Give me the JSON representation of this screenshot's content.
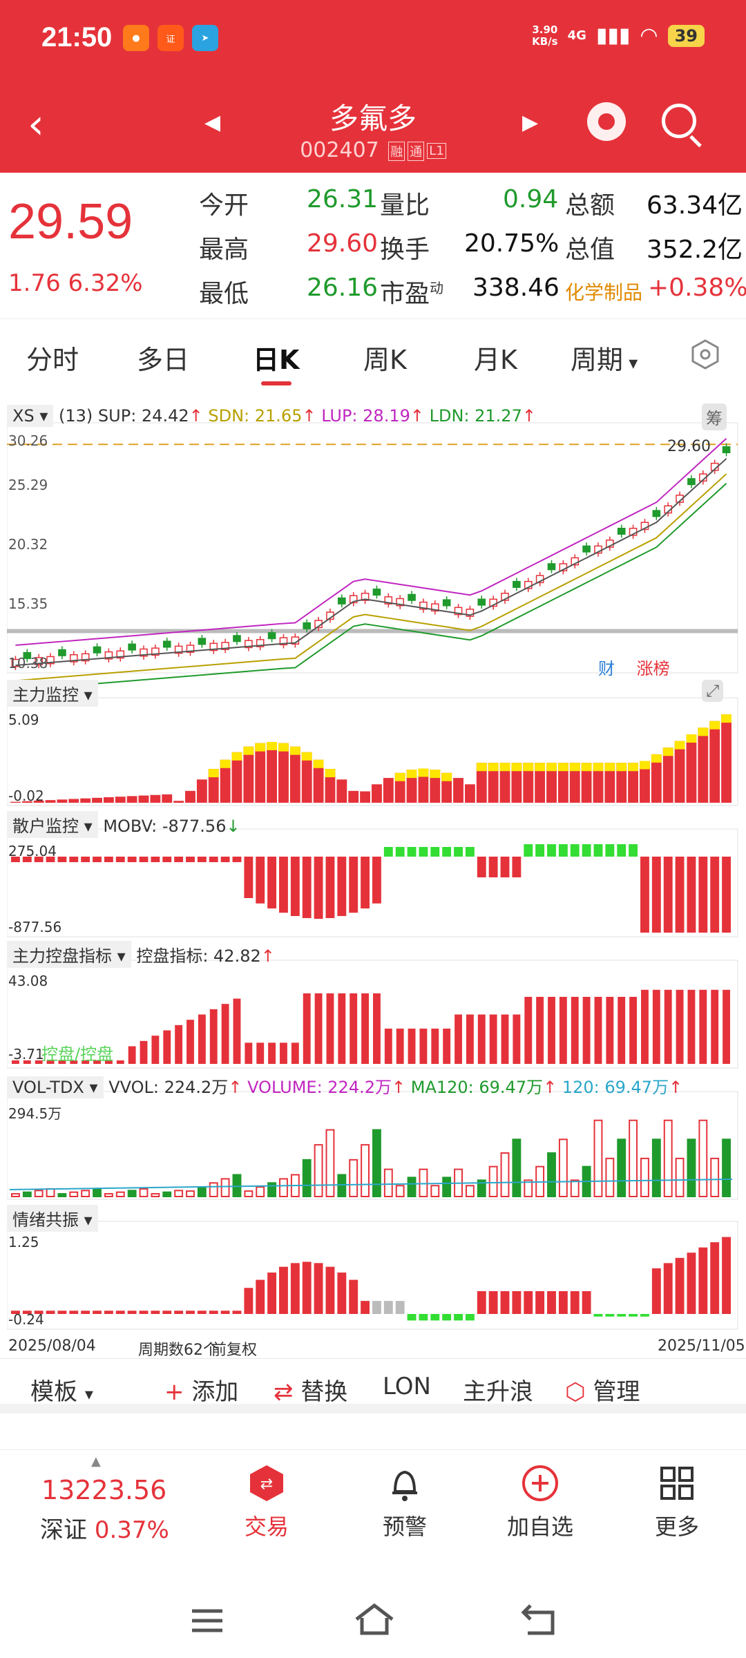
{
  "status_bar": {
    "time": "21:50",
    "net_speed_value": "3.90",
    "net_speed_unit": "KB/s",
    "signal": "4G",
    "battery": "39"
  },
  "header": {
    "stock_name": "多氟多",
    "stock_code": "002407",
    "tags": [
      "融",
      "通",
      "L1"
    ]
  },
  "quote": {
    "price": "29.59",
    "change": "1.76 6.32%",
    "fields": [
      {
        "label": "今开",
        "value": "26.31",
        "color": "green"
      },
      {
        "label": "量比",
        "value": "0.94",
        "color": "green"
      },
      {
        "label": "总额",
        "value": "63.34亿",
        "color": "dark"
      },
      {
        "label": "最高",
        "value": "29.60",
        "color": "red"
      },
      {
        "label": "换手",
        "value": "20.75%",
        "color": "dark"
      },
      {
        "label": "总值",
        "value": "352.2亿",
        "color": "dark"
      },
      {
        "label": "最低",
        "value": "26.16",
        "color": "green"
      },
      {
        "label": "市盈",
        "label_sup": "动",
        "value": "338.46",
        "color": "dark"
      },
      {
        "label": "化学制品",
        "value": "+0.38%",
        "color": "red"
      }
    ]
  },
  "tabs": [
    "分时",
    "多日",
    "日K",
    "周K",
    "月K",
    "周期"
  ],
  "active_tab": "日K",
  "main_chart": {
    "indicator_name": "XS",
    "param": "(13)",
    "sup": "SUP: 24.42",
    "sdn": "SDN: 21.65",
    "lup": "LUP: 28.19",
    "ldn": "LDN: 21.27",
    "corner_btn": "筹",
    "y_ticks": [
      "30.26",
      "25.29",
      "20.32",
      "15.35",
      "10.38"
    ],
    "high_label": "29.60",
    "tag_cai": "财",
    "tag_zhang": "涨",
    "tag_bang": "榜"
  },
  "panel_zhuli": {
    "name": "主力监控",
    "y_max": "5.09",
    "y_min": "-0.02"
  },
  "panel_sanhu": {
    "name": "散户监控",
    "value": "MOBV: -877.56",
    "y_max": "275.04",
    "y_min": "-877.56"
  },
  "panel_kongpan": {
    "name": "主力控盘指标",
    "value": "控盘指标: 42.82",
    "y_max": "43.08",
    "y_min": "-3.71",
    "overlay_text": "控盘/控盘"
  },
  "panel_vol": {
    "name": "VOL-TDX",
    "vvol": "VVOL: 224.2万",
    "volume": "VOLUME: 224.2万",
    "ma120": "MA120: 69.47万",
    "v120": "120: 69.47万",
    "y_max": "294.5万"
  },
  "panel_qingxu": {
    "name": "情绪共振",
    "y_max": "1.25",
    "y_min": "-0.24"
  },
  "footer_info": {
    "start_date": "2025/08/04",
    "count": "周期数62个",
    "adjust": "前复权",
    "end_date": "2025/11/05"
  },
  "toolbar": {
    "template": "模板",
    "add": "添加",
    "replace": "替换",
    "lon": "LON",
    "main_wave": "主升浪",
    "manage": "管理"
  },
  "bottom_nav": {
    "index_value": "13223.56",
    "index_name": "深证",
    "index_change": "0.37%",
    "items": [
      "交易",
      "预警",
      "加自选",
      "更多"
    ]
  },
  "colors": {
    "brand_red": "#e5323a",
    "green": "#1f9a2c",
    "orange": "#e08a00",
    "magenta": "#c026c0"
  }
}
